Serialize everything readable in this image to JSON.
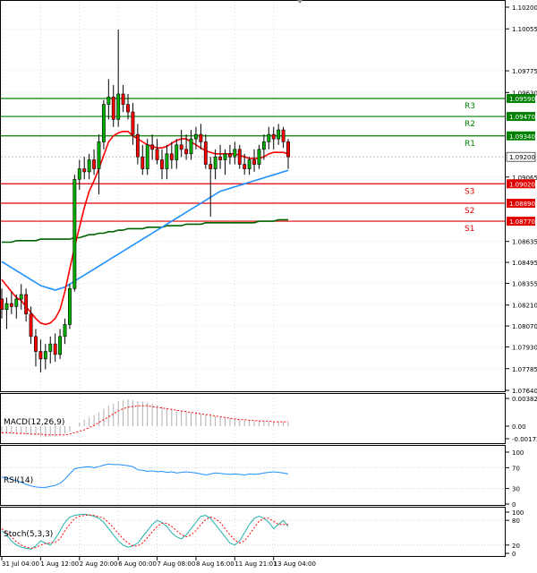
{
  "chart_data": {
    "type": "candlestick",
    "instrument_timeframe": "",
    "x_ticks": [
      "31 Jul 04:00",
      "1 Aug 12:00",
      "2 Aug 20:00",
      "6 Aug 00:00",
      "7 Aug 08:00",
      "8 Aug 16:00",
      "11 Aug 21:01",
      "13 Aug 04:00"
    ],
    "price_axis": {
      "ylim": [
        1.0764,
        1.102
      ],
      "ticks": [
        "1.10200",
        "1.10055",
        "1.09775",
        "1.09630",
        "1.09065",
        "1.08635",
        "1.08495",
        "1.08355",
        "1.08210",
        "1.08070",
        "1.07930",
        "1.07785",
        "1.07640"
      ]
    },
    "current_price": {
      "label": "1.09200",
      "value": 1.092,
      "color": "#ffffff"
    },
    "levels": [
      {
        "name": "R3",
        "value": 1.0959,
        "label": "1.09590",
        "color": "#008000"
      },
      {
        "name": "R2",
        "value": 1.0947,
        "label": "1.09470",
        "color": "#008000"
      },
      {
        "name": "R1",
        "value": 1.0934,
        "label": "1.09340",
        "color": "#008000"
      },
      {
        "name": "S3",
        "value": 1.0902,
        "label": "1.09020",
        "color": "#e00000"
      },
      {
        "name": "S2",
        "value": 1.0889,
        "label": "1.08890",
        "color": "#e00000"
      },
      {
        "name": "S1",
        "value": 1.0877,
        "label": "1.08770",
        "color": "#e00000"
      }
    ],
    "candles": [
      [
        1.0825,
        1.0832,
        1.0812,
        1.0818
      ],
      [
        1.0818,
        1.0826,
        1.0805,
        1.0822
      ],
      [
        1.0822,
        1.083,
        1.0815,
        1.082
      ],
      [
        1.082,
        1.0828,
        1.0812,
        1.0825
      ],
      [
        1.0825,
        1.0835,
        1.0818,
        1.0828
      ],
      [
        1.0828,
        1.0832,
        1.081,
        1.0815
      ],
      [
        1.0815,
        1.082,
        1.0795,
        1.08
      ],
      [
        1.08,
        1.0805,
        1.078,
        1.079
      ],
      [
        1.079,
        1.0798,
        1.0776,
        1.0785
      ],
      [
        1.0785,
        1.0795,
        1.0778,
        1.079
      ],
      [
        1.079,
        1.08,
        1.0782,
        1.0795
      ],
      [
        1.0795,
        1.0802,
        1.0783,
        1.0788
      ],
      [
        1.0788,
        1.0805,
        1.0785,
        1.08
      ],
      [
        1.08,
        1.0812,
        1.0795,
        1.0808
      ],
      [
        1.0808,
        1.0835,
        1.0805,
        1.0832
      ],
      [
        1.0832,
        1.0908,
        1.083,
        1.0905
      ],
      [
        1.0905,
        1.0918,
        1.0898,
        1.0912
      ],
      [
        1.0912,
        1.092,
        1.0905,
        1.091
      ],
      [
        1.091,
        1.0922,
        1.0905,
        1.0918
      ],
      [
        1.0918,
        1.0925,
        1.0908,
        1.0912
      ],
      [
        1.0912,
        1.0935,
        1.0895,
        1.093
      ],
      [
        1.093,
        1.0958,
        1.0925,
        1.0955
      ],
      [
        1.0955,
        1.0972,
        1.0945,
        1.096
      ],
      [
        1.096,
        1.0968,
        1.094,
        1.0945
      ],
      [
        1.0945,
        1.1005,
        1.094,
        1.0962
      ],
      [
        1.0962,
        1.0968,
        1.095,
        1.0955
      ],
      [
        1.0955,
        1.0962,
        1.0945,
        1.095
      ],
      [
        1.095,
        1.0956,
        1.0928,
        1.0935
      ],
      [
        1.0935,
        1.0942,
        1.0915,
        1.092
      ],
      [
        1.092,
        1.0928,
        1.0908,
        1.0912
      ],
      [
        1.0912,
        1.0932,
        1.0908,
        1.0928
      ],
      [
        1.0928,
        1.0935,
        1.0918,
        1.0925
      ],
      [
        1.0925,
        1.0932,
        1.0915,
        1.0918
      ],
      [
        1.0918,
        1.0925,
        1.0905,
        1.0912
      ],
      [
        1.0912,
        1.0928,
        1.0905,
        1.0922
      ],
      [
        1.0922,
        1.093,
        1.0912,
        1.0918
      ],
      [
        1.0918,
        1.0932,
        1.0912,
        1.0928
      ],
      [
        1.0928,
        1.0938,
        1.092,
        1.0925
      ],
      [
        1.0925,
        1.0935,
        1.0918,
        1.0922
      ],
      [
        1.0922,
        1.0938,
        1.0918,
        1.0932
      ],
      [
        1.0932,
        1.094,
        1.0925,
        1.0935
      ],
      [
        1.0935,
        1.0942,
        1.0925,
        1.093
      ],
      [
        1.093,
        1.0935,
        1.0912,
        1.0915
      ],
      [
        1.0915,
        1.092,
        1.088,
        1.0912
      ],
      [
        1.0912,
        1.0925,
        1.0905,
        1.092
      ],
      [
        1.092,
        1.0928,
        1.0912,
        1.0918
      ],
      [
        1.0918,
        1.0925,
        1.0908,
        1.0922
      ],
      [
        1.0922,
        1.0928,
        1.0915,
        1.092
      ],
      [
        1.092,
        1.093,
        1.0915,
        1.0925
      ],
      [
        1.0925,
        1.0928,
        1.0912,
        1.0915
      ],
      [
        1.0915,
        1.0922,
        1.0908,
        1.0912
      ],
      [
        1.0912,
        1.092,
        1.0908,
        1.0918
      ],
      [
        1.0918,
        1.0925,
        1.091,
        1.0915
      ],
      [
        1.0915,
        1.0928,
        1.0912,
        1.0925
      ],
      [
        1.0925,
        1.0935,
        1.0918,
        1.093
      ],
      [
        1.093,
        1.094,
        1.0925,
        1.0935
      ],
      [
        1.0935,
        1.094,
        1.0925,
        1.0932
      ],
      [
        1.0932,
        1.0942,
        1.0928,
        1.0938
      ],
      [
        1.0938,
        1.094,
        1.0926,
        1.093
      ],
      [
        1.093,
        1.0932,
        1.0912,
        1.092
      ]
    ],
    "ma_fast": [
      1.0838,
      1.0834,
      1.083,
      1.0826,
      1.0824,
      1.082,
      1.0816,
      1.0812,
      1.0809,
      1.0808,
      1.0809,
      1.0812,
      1.0818,
      1.083,
      1.0845,
      1.086,
      1.0873,
      1.0886,
      1.0897,
      1.0904,
      1.0912,
      1.0921,
      1.093,
      1.0934,
      1.0936,
      1.0937,
      1.0937,
      1.0934,
      1.0932,
      1.093,
      1.0928,
      1.0927,
      1.0926,
      1.0926,
      1.0927,
      1.0929,
      1.0931,
      1.0932,
      1.0932,
      1.093,
      1.0928,
      1.0926,
      1.0924,
      1.0923,
      1.0922,
      1.0922,
      1.0922,
      1.0922,
      1.0922,
      1.0921,
      1.092,
      1.0919,
      1.0919,
      1.0919,
      1.092,
      1.0922,
      1.0923,
      1.0923,
      1.0923,
      1.0922
    ],
    "ma_mid": [
      1.085,
      1.0848,
      1.0846,
      1.0844,
      1.0842,
      1.084,
      1.0838,
      1.0836,
      1.0834,
      1.0833,
      1.0832,
      1.0831,
      1.0832,
      1.0833,
      1.0835,
      1.0837,
      1.0839,
      1.0841,
      1.0843,
      1.0845,
      1.0847,
      1.0849,
      1.0851,
      1.0853,
      1.0855,
      1.0857,
      1.0859,
      1.0861,
      1.0863,
      1.0865,
      1.0867,
      1.0869,
      1.0871,
      1.0873,
      1.0875,
      1.0877,
      1.0879,
      1.0881,
      1.0883,
      1.0885,
      1.0887,
      1.0889,
      1.0891,
      1.0893,
      1.0895,
      1.0897,
      1.0898,
      1.0899,
      1.09,
      1.0901,
      1.0902,
      1.0903,
      1.0904,
      1.0905,
      1.0906,
      1.0907,
      1.0908,
      1.0909,
      1.091,
      1.0911
    ],
    "ma_slow": [
      1.0863,
      1.0863,
      1.0863,
      1.0864,
      1.0864,
      1.0864,
      1.0864,
      1.0864,
      1.0865,
      1.0865,
      1.0865,
      1.0865,
      1.0865,
      1.0865,
      1.0865,
      1.0866,
      1.0866,
      1.0867,
      1.0868,
      1.0868,
      1.0869,
      1.0869,
      1.087,
      1.087,
      1.0871,
      1.0871,
      1.0872,
      1.0872,
      1.0872,
      1.0872,
      1.0873,
      1.0873,
      1.0873,
      1.0873,
      1.0874,
      1.0874,
      1.0874,
      1.0874,
      1.0875,
      1.0875,
      1.0875,
      1.0875,
      1.0876,
      1.0876,
      1.0876,
      1.0876,
      1.0876,
      1.0876,
      1.0876,
      1.0876,
      1.0876,
      1.0876,
      1.0876,
      1.0877,
      1.0877,
      1.0877,
      1.0877,
      1.0878,
      1.0878,
      1.0878
    ],
    "macd": {
      "label": "MACD(12,26,9)",
      "ticks": [
        "0.003823",
        "0.00",
        "-0.001726"
      ],
      "ylim": [
        -0.001726,
        0.003823
      ],
      "histogram": [
        -0.001,
        -0.001,
        -0.0011,
        -0.0011,
        -0.0011,
        -0.0012,
        -0.0012,
        -0.0013,
        -0.0014,
        -0.0015,
        -0.0014,
        -0.0014,
        -0.0012,
        -0.001,
        -0.0007,
        0.0,
        0.0005,
        0.0009,
        0.0012,
        0.0015,
        0.0019,
        0.0024,
        0.0028,
        0.0031,
        0.0034,
        0.0036,
        0.0037,
        0.0036,
        0.0035,
        0.0034,
        0.0032,
        0.0031,
        0.0029,
        0.0027,
        0.0025,
        0.0024,
        0.0022,
        0.0021,
        0.002,
        0.0019,
        0.0018,
        0.0017,
        0.0016,
        0.0015,
        0.0014,
        0.0013,
        0.0012,
        0.0011,
        0.001,
        0.0009,
        0.0008,
        0.0008,
        0.0007,
        0.0007,
        0.0006,
        0.0006,
        0.0006,
        0.0006,
        0.0006,
        0.0005
      ],
      "signal": [
        -0.0009,
        -0.0009,
        -0.0009,
        -0.001,
        -0.001,
        -0.001,
        -0.0011,
        -0.0011,
        -0.0011,
        -0.0012,
        -0.0012,
        -0.0012,
        -0.0012,
        -0.0012,
        -0.0011,
        -0.0009,
        -0.0007,
        -0.0005,
        -0.0002,
        0.0001,
        0.0005,
        0.0009,
        0.0013,
        0.0017,
        0.0021,
        0.0024,
        0.0026,
        0.0027,
        0.0028,
        0.0028,
        0.0028,
        0.0027,
        0.0026,
        0.0025,
        0.0024,
        0.0023,
        0.0022,
        0.0021,
        0.002,
        0.0019,
        0.0018,
        0.0017,
        0.0016,
        0.0015,
        0.0014,
        0.0013,
        0.0012,
        0.0011,
        0.001,
        0.0009,
        0.0009,
        0.0008,
        0.0008,
        0.0007,
        0.0007,
        0.0007,
        0.0006,
        0.0006,
        0.0006,
        0.0006
      ]
    },
    "rsi": {
      "label": "RSI(14)",
      "ticks": [
        "100",
        "70",
        "30",
        "0"
      ],
      "ylim": [
        0,
        100
      ],
      "values": [
        52,
        50,
        48,
        45,
        42,
        38,
        35,
        33,
        32,
        32,
        34,
        36,
        40,
        48,
        58,
        68,
        70,
        71,
        72,
        70,
        72,
        75,
        77,
        76,
        76,
        75,
        74,
        72,
        66,
        65,
        63,
        64,
        62,
        63,
        61,
        62,
        60,
        61,
        62,
        61,
        60,
        58,
        56,
        58,
        60,
        59,
        58,
        57,
        58,
        57,
        56,
        58,
        57,
        58,
        60,
        61,
        62,
        61,
        60,
        58
      ]
    },
    "stoch": {
      "label": "Stoch(5,3,3)",
      "ticks": [
        "100",
        "80",
        "20",
        "0"
      ],
      "ylim": [
        0,
        100
      ],
      "k": [
        55,
        45,
        30,
        20,
        15,
        12,
        10,
        18,
        30,
        25,
        20,
        35,
        55,
        75,
        88,
        92,
        94,
        95,
        93,
        90,
        85,
        75,
        60,
        45,
        30,
        20,
        15,
        18,
        25,
        40,
        55,
        70,
        80,
        75,
        65,
        50,
        40,
        35,
        45,
        60,
        75,
        90,
        92,
        85,
        70,
        55,
        40,
        25,
        20,
        30,
        50,
        70,
        85,
        90,
        85,
        75,
        60,
        70,
        80,
        65
      ],
      "d": [
        60,
        50,
        40,
        28,
        20,
        15,
        12,
        14,
        20,
        24,
        25,
        27,
        35,
        55,
        70,
        85,
        90,
        92,
        93,
        92,
        89,
        85,
        75,
        62,
        48,
        35,
        25,
        18,
        18,
        25,
        38,
        52,
        65,
        73,
        73,
        65,
        55,
        45,
        40,
        45,
        55,
        70,
        82,
        88,
        84,
        75,
        60,
        45,
        32,
        25,
        30,
        45,
        62,
        78,
        85,
        85,
        78,
        70,
        70,
        70
      ]
    }
  }
}
